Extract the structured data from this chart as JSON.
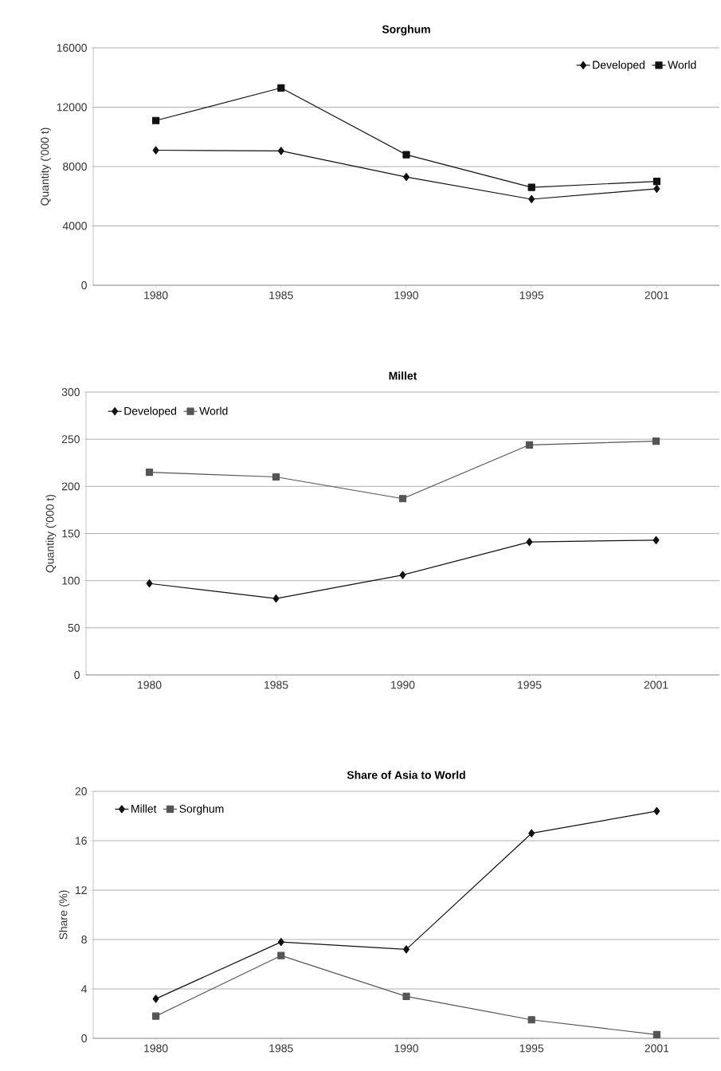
{
  "chart_data": [
    {
      "type": "line",
      "title": "Sorghum",
      "ylabel": "Quantity ('000 t)",
      "categories": [
        "1980",
        "1985",
        "1990",
        "1995",
        "2001"
      ],
      "series": [
        {
          "name": "Developed",
          "color": "#111111",
          "marker": "diamond",
          "values": [
            9100,
            9050,
            7300,
            5800,
            6500
          ]
        },
        {
          "name": "World",
          "color": "#111111",
          "marker": "square",
          "values": [
            11100,
            13300,
            8800,
            6600,
            7000
          ]
        }
      ],
      "ylim": [
        0,
        16000
      ],
      "yticks": [
        0,
        4000,
        8000,
        12000,
        16000
      ],
      "grid": "y",
      "legend": "top right"
    },
    {
      "type": "line",
      "title": "Millet",
      "ylabel": "Quantity ('000 t)",
      "categories": [
        "1980",
        "1985",
        "1990",
        "1995",
        "2001"
      ],
      "series": [
        {
          "name": "Developed",
          "color": "#111111",
          "marker": "diamond",
          "values": [
            97,
            81,
            106,
            141,
            143
          ]
        },
        {
          "name": "World",
          "color": "#555555",
          "marker": "square",
          "values": [
            215,
            210,
            187,
            244,
            248
          ]
        }
      ],
      "ylim": [
        0,
        300
      ],
      "yticks": [
        0,
        50,
        100,
        150,
        200,
        250,
        300
      ],
      "grid": "y",
      "legend": "top left"
    },
    {
      "type": "line",
      "title": "Share of Asia to World",
      "ylabel": "Share (%)",
      "categories": [
        "1980",
        "1985",
        "1990",
        "1995",
        "2001"
      ],
      "series": [
        {
          "name": "Millet",
          "color": "#111111",
          "marker": "diamond",
          "values": [
            3.2,
            7.8,
            7.2,
            16.6,
            18.4
          ]
        },
        {
          "name": "Sorghum",
          "color": "#555555",
          "marker": "square",
          "values": [
            1.8,
            6.7,
            3.4,
            1.5,
            0.3
          ]
        }
      ],
      "ylim": [
        0,
        20
      ],
      "yticks": [
        0,
        4,
        8,
        12,
        16,
        20
      ],
      "grid": "y",
      "legend": "top left"
    }
  ]
}
